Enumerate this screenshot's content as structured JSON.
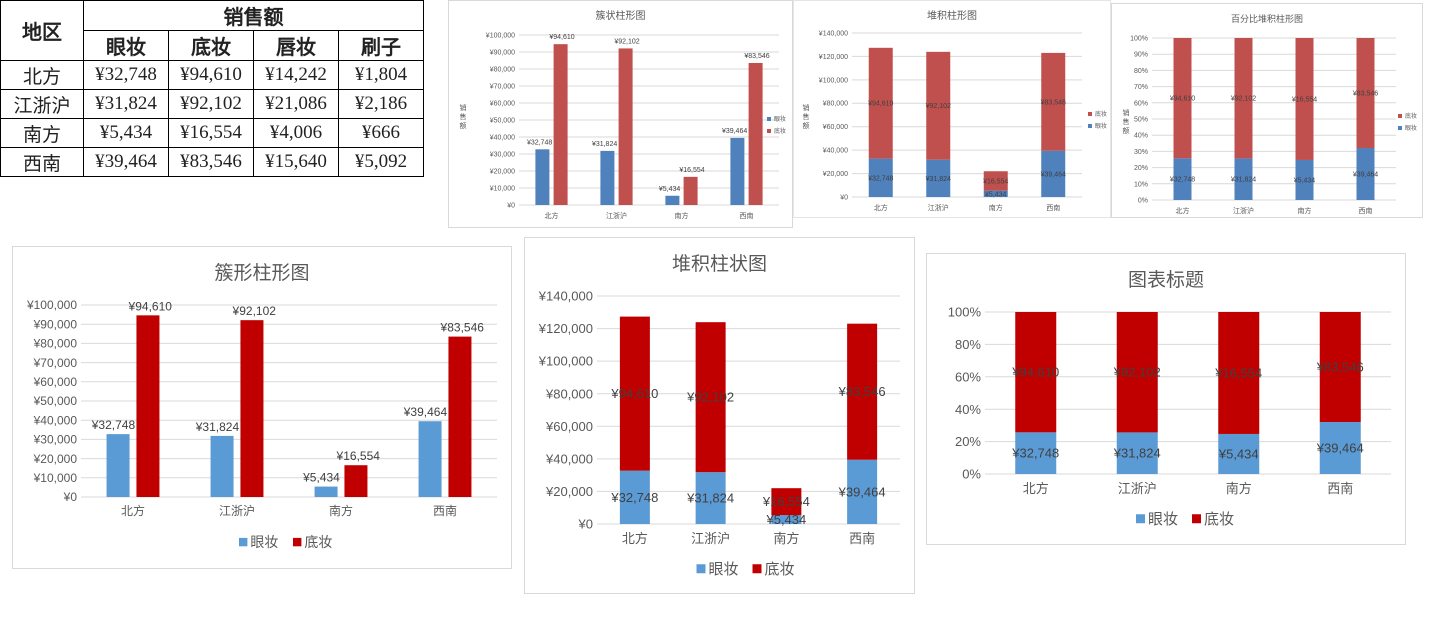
{
  "table": {
    "region_header": "地区",
    "sales_header": "销售额",
    "columns": [
      "眼妆",
      "底妆",
      "唇妆",
      "刷子"
    ],
    "rows": [
      {
        "region": "北方",
        "values": [
          "¥32,748",
          "¥94,610",
          "¥14,242",
          "¥1,804"
        ]
      },
      {
        "region": "江浙沪",
        "values": [
          "¥31,824",
          "¥92,102",
          "¥21,086",
          "¥2,186"
        ]
      },
      {
        "region": "南方",
        "values": [
          "¥5,434",
          "¥16,554",
          "¥4,006",
          "¥666"
        ]
      },
      {
        "region": "西南",
        "values": [
          "¥39,464",
          "¥83,546",
          "¥15,640",
          "¥5,092"
        ]
      }
    ]
  },
  "colors": {
    "eye_small": "#4f81bd",
    "base_small": "#c0504d",
    "eye_large": "#5b9bd5",
    "base_large": "#c00000",
    "grid": "#d9d9d9",
    "axis_text": "#595959"
  },
  "chart_data": [
    {
      "type": "bar",
      "variant": "clustered",
      "size": "small",
      "title": "簇状柱形图",
      "ylabel": "销售额",
      "categories": [
        "北方",
        "江浙沪",
        "南方",
        "西南"
      ],
      "series": [
        {
          "name": "眼妆",
          "values": [
            32748,
            31824,
            5434,
            39464
          ],
          "labels": [
            "¥32,748",
            "¥31,824",
            "¥5,434",
            "¥39,464"
          ]
        },
        {
          "name": "底妆",
          "values": [
            94610,
            92102,
            16554,
            83546
          ],
          "labels": [
            "¥94,610",
            "¥92,102",
            "¥16,554",
            "¥83,546"
          ]
        }
      ],
      "ylim": [
        0,
        100000
      ],
      "yticks": [
        "¥0",
        "¥10,000",
        "¥20,000",
        "¥30,000",
        "¥40,000",
        "¥50,000",
        "¥60,000",
        "¥70,000",
        "¥80,000",
        "¥90,000",
        "¥100,000"
      ],
      "legend": "right",
      "legend_order": [
        "眼妆",
        "底妆"
      ],
      "grid": true
    },
    {
      "type": "bar",
      "variant": "stacked",
      "size": "small",
      "title": "堆积柱形图",
      "ylabel": "销售额",
      "categories": [
        "北方",
        "江浙沪",
        "南方",
        "西南"
      ],
      "series": [
        {
          "name": "眼妆",
          "values": [
            32748,
            31824,
            5434,
            39464
          ],
          "labels": [
            "¥32,748",
            "¥31,824",
            "¥5,434",
            "¥39,464"
          ]
        },
        {
          "name": "底妆",
          "values": [
            94610,
            92102,
            16554,
            83546
          ],
          "labels": [
            "¥94,610",
            "¥92,102",
            "¥16,554",
            "¥83,546"
          ]
        }
      ],
      "ylim": [
        0,
        140000
      ],
      "yticks": [
        "¥0",
        "¥20,000",
        "¥40,000",
        "¥60,000",
        "¥80,000",
        "¥100,000",
        "¥120,000",
        "¥140,000"
      ],
      "legend": "right",
      "legend_order": [
        "底妆",
        "眼妆"
      ],
      "grid": true
    },
    {
      "type": "bar",
      "variant": "percent",
      "size": "small",
      "title": "百分比堆积柱形图",
      "ylabel": "销售额",
      "categories": [
        "北方",
        "江浙沪",
        "南方",
        "西南"
      ],
      "series": [
        {
          "name": "眼妆",
          "values": [
            32748,
            31824,
            5434,
            39464
          ],
          "labels": [
            "¥32,748",
            "¥31,824",
            "¥5,434",
            "¥39,464"
          ]
        },
        {
          "name": "底妆",
          "values": [
            94610,
            92102,
            16554,
            83546
          ],
          "labels": [
            "¥94,610",
            "¥92,102",
            "¥16,554",
            "¥83,546"
          ]
        }
      ],
      "ylim": [
        0,
        100
      ],
      "yticks": [
        "0%",
        "10%",
        "20%",
        "30%",
        "40%",
        "50%",
        "60%",
        "70%",
        "80%",
        "90%",
        "100%"
      ],
      "legend": "right",
      "legend_order": [
        "底妆",
        "眼妆"
      ],
      "grid": true
    },
    {
      "type": "bar",
      "variant": "clustered",
      "size": "large",
      "title": "簇形柱形图",
      "ylabel": "",
      "categories": [
        "北方",
        "江浙沪",
        "南方",
        "西南"
      ],
      "series": [
        {
          "name": "眼妆",
          "values": [
            32748,
            31824,
            5434,
            39464
          ],
          "labels": [
            "¥32,748",
            "¥31,824",
            "¥5,434",
            "¥39,464"
          ]
        },
        {
          "name": "底妆",
          "values": [
            94610,
            92102,
            16554,
            83546
          ],
          "labels": [
            "¥94,610",
            "¥92,102",
            "¥16,554",
            "¥83,546"
          ]
        }
      ],
      "ylim": [
        0,
        100000
      ],
      "yticks": [
        "¥0",
        "¥10,000",
        "¥20,000",
        "¥30,000",
        "¥40,000",
        "¥50,000",
        "¥60,000",
        "¥70,000",
        "¥80,000",
        "¥90,000",
        "¥100,000"
      ],
      "legend": "bottom",
      "legend_order": [
        "眼妆",
        "底妆"
      ],
      "grid": true
    },
    {
      "type": "bar",
      "variant": "stacked",
      "size": "large",
      "title": "堆积柱状图",
      "ylabel": "",
      "categories": [
        "北方",
        "江浙沪",
        "南方",
        "西南"
      ],
      "series": [
        {
          "name": "眼妆",
          "values": [
            32748,
            31824,
            5434,
            39464
          ],
          "labels": [
            "¥32,748",
            "¥31,824",
            "¥5,434",
            "¥39,464"
          ]
        },
        {
          "name": "底妆",
          "values": [
            94610,
            92102,
            16554,
            83546
          ],
          "labels": [
            "¥94,610",
            "¥92,102",
            "¥16,554",
            "¥83,546"
          ]
        }
      ],
      "ylim": [
        0,
        140000
      ],
      "yticks": [
        "¥0",
        "¥20,000",
        "¥40,000",
        "¥60,000",
        "¥80,000",
        "¥100,000",
        "¥120,000",
        "¥140,000"
      ],
      "legend": "bottom",
      "legend_order": [
        "眼妆",
        "底妆"
      ],
      "grid": true
    },
    {
      "type": "bar",
      "variant": "percent",
      "size": "large",
      "title": "图表标题",
      "ylabel": "",
      "categories": [
        "北方",
        "江浙沪",
        "南方",
        "西南"
      ],
      "series": [
        {
          "name": "眼妆",
          "values": [
            32748,
            31824,
            5434,
            39464
          ],
          "labels": [
            "¥32,748",
            "¥31,824",
            "¥5,434",
            "¥39,464"
          ]
        },
        {
          "name": "底妆",
          "values": [
            94610,
            92102,
            16554,
            83546
          ],
          "labels": [
            "¥94,610",
            "¥92,102",
            "¥16,554",
            "¥83,546"
          ]
        }
      ],
      "ylim": [
        0,
        100
      ],
      "yticks": [
        "0%",
        "20%",
        "40%",
        "60%",
        "80%",
        "100%"
      ],
      "legend": "bottom",
      "legend_order": [
        "眼妆",
        "底妆"
      ],
      "grid": true
    }
  ]
}
